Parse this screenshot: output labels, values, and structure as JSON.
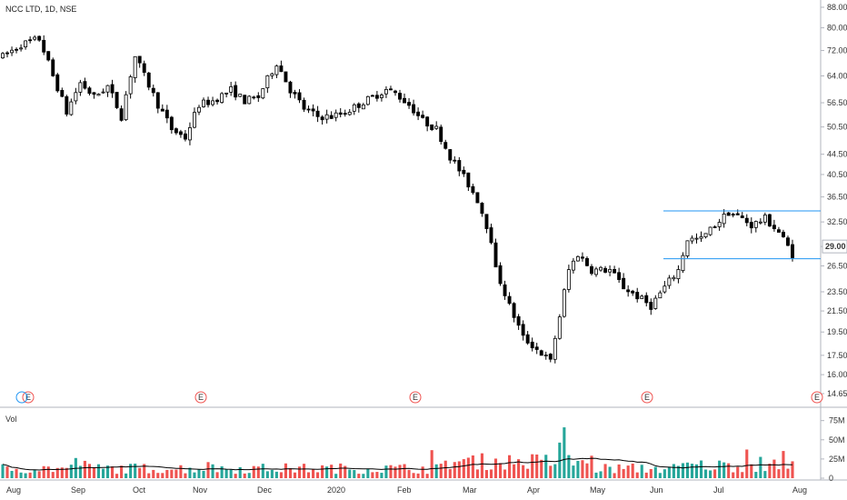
{
  "header": {
    "title": "NCC LTD, 1D, NSE"
  },
  "chart_data": {
    "type": "candlestick",
    "price_axis": {
      "scale": "log",
      "ticks": [
        "88.00",
        "80.00",
        "72.00",
        "64.00",
        "56.50",
        "50.50",
        "44.50",
        "40.50",
        "36.50",
        "32.50",
        "29.00",
        "26.50",
        "23.50",
        "21.50",
        "19.50",
        "17.50",
        "16.00",
        "14.65"
      ],
      "last_price": "29.00",
      "last_price_tag_color": "#ffffff"
    },
    "time_axis": {
      "labels": [
        "Aug",
        "Sep",
        "Oct",
        "Nov",
        "Dec",
        "2020",
        "Feb",
        "Mar",
        "Apr",
        "May",
        "Jun",
        "Jul",
        "Aug"
      ]
    },
    "volume_pane": {
      "label": "Vol",
      "ticks": [
        "75M",
        "50M",
        "25M",
        "0"
      ],
      "up_color": "#26a69a",
      "down_color": "#ef5350",
      "ma_color": "#000000"
    },
    "earnings_markers": {
      "symbol": "E",
      "count": 5,
      "color": "#ef5350"
    },
    "annotations": {
      "resistance_line": {
        "price": 34.2,
        "color": "#2196f3"
      },
      "support_line": {
        "price": 27.4,
        "color": "#2196f3"
      }
    },
    "candle_colors": {
      "up": "#ffffff",
      "down": "#000000",
      "wick": "#000000"
    },
    "price_path": [
      [
        0,
        70
      ],
      [
        4,
        74
      ],
      [
        8,
        76
      ],
      [
        11,
        64
      ],
      [
        14,
        54
      ],
      [
        17,
        62
      ],
      [
        20,
        58
      ],
      [
        23,
        61
      ],
      [
        26,
        53
      ],
      [
        29,
        70
      ],
      [
        31,
        64
      ],
      [
        34,
        56
      ],
      [
        37,
        50
      ],
      [
        40,
        48
      ],
      [
        43,
        56
      ],
      [
        46,
        57
      ],
      [
        50,
        60
      ],
      [
        53,
        57
      ],
      [
        56,
        58
      ],
      [
        60,
        68
      ],
      [
        63,
        60
      ],
      [
        66,
        55
      ],
      [
        69,
        53
      ],
      [
        72,
        53
      ],
      [
        75,
        54
      ],
      [
        78,
        56
      ],
      [
        81,
        58
      ],
      [
        84,
        60
      ],
      [
        86,
        59
      ],
      [
        89,
        56
      ],
      [
        92,
        52
      ],
      [
        95,
        50
      ],
      [
        98,
        44
      ],
      [
        101,
        40
      ],
      [
        104,
        36
      ],
      [
        107,
        30
      ],
      [
        108,
        26
      ],
      [
        111,
        22
      ],
      [
        114,
        19
      ],
      [
        117,
        18
      ],
      [
        120,
        17
      ],
      [
        122,
        21
      ],
      [
        124,
        26
      ],
      [
        126,
        28
      ],
      [
        129,
        26
      ],
      [
        133,
        26
      ],
      [
        136,
        24
      ],
      [
        139,
        23
      ],
      [
        142,
        22
      ],
      [
        145,
        24
      ],
      [
        148,
        26
      ],
      [
        150,
        30
      ],
      [
        153,
        30
      ],
      [
        156,
        32
      ],
      [
        159,
        34
      ],
      [
        162,
        33
      ],
      [
        164,
        32
      ],
      [
        167,
        33
      ],
      [
        170,
        31
      ],
      [
        173,
        28
      ]
    ],
    "series": [
      {
        "name": "Vol",
        "type": "bar"
      }
    ]
  }
}
